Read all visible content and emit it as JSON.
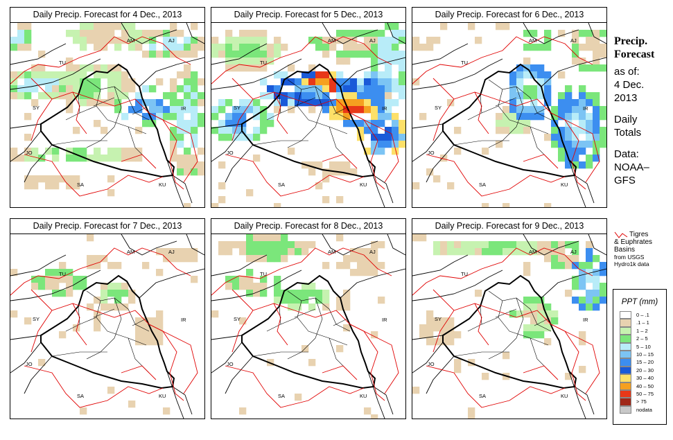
{
  "panels": [
    {
      "title": "Daily Precip. Forecast for  4 Dec., 2013"
    },
    {
      "title": "Daily Precip. Forecast for  5 Dec., 2013"
    },
    {
      "title": "Daily Precip. Forecast for  6 Dec., 2013"
    },
    {
      "title": "Daily Precip. Forecast for  7 Dec., 2013"
    },
    {
      "title": "Daily Precip. Forecast for  8 Dec., 2013"
    },
    {
      "title": "Daily Precip. Forecast for  9 Dec., 2013"
    }
  ],
  "map_labels": {
    "am": "AM",
    "aj": "AJ",
    "tu": "TU",
    "sy": "SY",
    "ir": "IR",
    "jo": "JO",
    "sa": "SA",
    "ku": "KU"
  },
  "info": {
    "title_line1": "Precip.",
    "title_line2": "Forecast",
    "asof": "as of:",
    "date1": "4 Dec.",
    "date2": "2013",
    "daily": "Daily",
    "totals": "Totals",
    "data": "Data:",
    "src1": "NOAA–",
    "src2": "GFS"
  },
  "basin_note": {
    "line1": "Tigres",
    "line2": "& Euphrates",
    "line3": "Basins",
    "line4": "from USGS",
    "line5": "Hydro1k data"
  },
  "legend": {
    "title": "PPT (mm)",
    "items": [
      {
        "label": "0 – .1",
        "color": "#ffffff"
      },
      {
        "label": ".1 – 1",
        "color": "#e8d2b0"
      },
      {
        "label": "1 – 2",
        "color": "#c6f2b0"
      },
      {
        "label": "2 – 5",
        "color": "#7be67b"
      },
      {
        "label": "5 – 10",
        "color": "#b8ecf8"
      },
      {
        "label": "10 – 15",
        "color": "#7cc4f4"
      },
      {
        "label": "15 – 20",
        "color": "#3c8ef0"
      },
      {
        "label": "20 – 30",
        "color": "#1a5ad8"
      },
      {
        "label": "30 – 40",
        "color": "#fde068"
      },
      {
        "label": "40 – 50",
        "color": "#f5a020"
      },
      {
        "label": "50 – 75",
        "color": "#e83818"
      },
      {
        "label": "> 75",
        "color": "#a02818"
      },
      {
        "label": "nodata",
        "color": "#c8c8c8"
      }
    ]
  }
}
